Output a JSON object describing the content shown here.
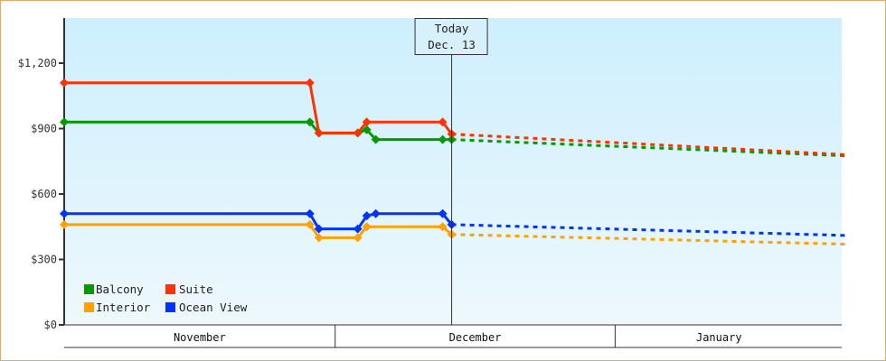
{
  "chart_data": {
    "type": "line",
    "title": "",
    "xlabel": "",
    "ylabel": "",
    "ylim": [
      0,
      1400
    ],
    "y_ticks": [
      {
        "value": 0,
        "label": "$0"
      },
      {
        "value": 300,
        "label": "$300"
      },
      {
        "value": 600,
        "label": "$600"
      },
      {
        "value": 900,
        "label": "$900"
      },
      {
        "value": 1200,
        "label": "$1,200"
      }
    ],
    "x_months": [
      {
        "label": "November",
        "start_day": 0,
        "end_day": 30
      },
      {
        "label": "December",
        "start_day": 30,
        "end_day": 61
      },
      {
        "label": "January",
        "start_day": 61,
        "end_day": 84
      }
    ],
    "grid": false,
    "legend_position": "bottom-left inside plot",
    "today_marker": {
      "line1": "Today",
      "line2": "Dec. 13",
      "day": 42.9
    },
    "series": [
      {
        "name": "Balcony",
        "color": "#009900",
        "actual": [
          {
            "day": 0,
            "value": 930
          },
          {
            "day": 27.2,
            "value": 930
          },
          {
            "day": 28.2,
            "value": 880
          },
          {
            "day": 32.5,
            "value": 880
          },
          {
            "day": 33.5,
            "value": 895
          },
          {
            "day": 34.5,
            "value": 850
          },
          {
            "day": 41.9,
            "value": 850
          },
          {
            "day": 42.9,
            "value": 850
          }
        ],
        "forecast": [
          {
            "day": 42.9,
            "value": 850
          },
          {
            "day": 86.7,
            "value": 775
          }
        ]
      },
      {
        "name": "Suite",
        "color": "#ff3300",
        "actual": [
          {
            "day": 0,
            "value": 1110
          },
          {
            "day": 27.2,
            "value": 1110
          },
          {
            "day": 28.2,
            "value": 880
          },
          {
            "day": 32.5,
            "value": 880
          },
          {
            "day": 33.5,
            "value": 930
          },
          {
            "day": 41.9,
            "value": 930
          },
          {
            "day": 42.9,
            "value": 875
          }
        ],
        "forecast": [
          {
            "day": 42.9,
            "value": 875
          },
          {
            "day": 86.7,
            "value": 780
          }
        ]
      },
      {
        "name": "Interior",
        "color": "#ffa200",
        "actual": [
          {
            "day": 0,
            "value": 460
          },
          {
            "day": 27.2,
            "value": 460
          },
          {
            "day": 28.2,
            "value": 400
          },
          {
            "day": 32.5,
            "value": 400
          },
          {
            "day": 33.5,
            "value": 450
          },
          {
            "day": 41.9,
            "value": 450
          },
          {
            "day": 42.9,
            "value": 415
          }
        ],
        "forecast": [
          {
            "day": 42.9,
            "value": 415
          },
          {
            "day": 86.7,
            "value": 370
          }
        ]
      },
      {
        "name": "Ocean View",
        "color": "#0033ff",
        "actual": [
          {
            "day": 0,
            "value": 510
          },
          {
            "day": 27.2,
            "value": 510
          },
          {
            "day": 28.2,
            "value": 440
          },
          {
            "day": 32.5,
            "value": 440
          },
          {
            "day": 33.5,
            "value": 500
          },
          {
            "day": 34.5,
            "value": 510
          },
          {
            "day": 41.9,
            "value": 510
          },
          {
            "day": 42.9,
            "value": 460
          }
        ],
        "forecast": [
          {
            "day": 42.9,
            "value": 460
          },
          {
            "day": 86.7,
            "value": 410
          }
        ]
      }
    ]
  },
  "legend": {
    "items": [
      {
        "label": "Balcony",
        "color": "#009900"
      },
      {
        "label": "Suite",
        "color": "#ff3300"
      },
      {
        "label": "Interior",
        "color": "#ffa200"
      },
      {
        "label": "Ocean View",
        "color": "#0033ff"
      }
    ]
  },
  "colors": {
    "frame_border": "#e8a860",
    "plot_bg_top": "#cdeffd",
    "plot_bg_bottom": "#eef8fd",
    "axis": "#333333"
  }
}
